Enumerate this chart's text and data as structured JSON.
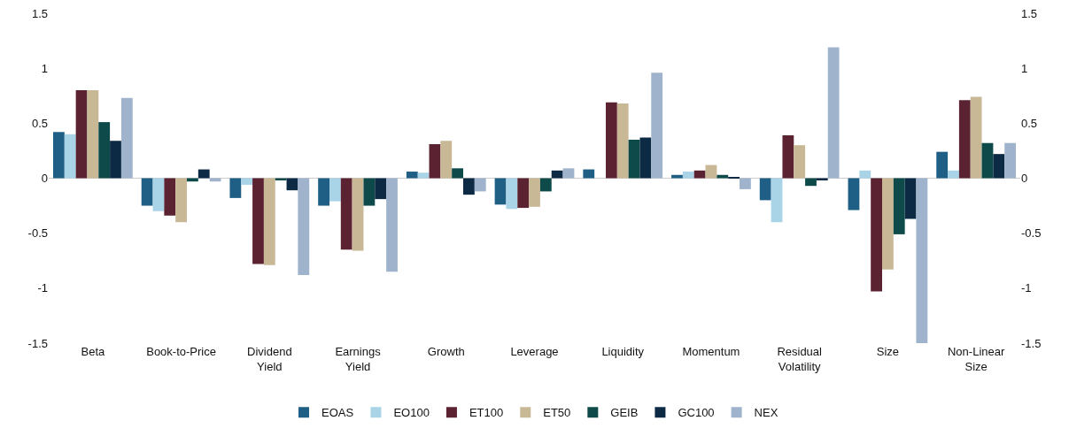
{
  "chart_data": {
    "type": "bar",
    "categories": [
      "Beta",
      "Book-to-Price",
      "Dividend\nYield",
      "Earnings\nYield",
      "Growth",
      "Leverage",
      "Liquidity",
      "Momentum",
      "Residual\nVolatility",
      "Size",
      "Non-Linear\nSize"
    ],
    "series": [
      {
        "name": "EOAS",
        "color": "#1f5f86",
        "values": [
          0.42,
          -0.25,
          -0.18,
          -0.25,
          0.06,
          -0.24,
          0.08,
          0.03,
          -0.2,
          -0.29,
          0.24
        ]
      },
      {
        "name": "EO100",
        "color": "#a9d4e8",
        "values": [
          0.4,
          -0.3,
          -0.06,
          -0.21,
          0.05,
          -0.28,
          0.0,
          0.06,
          -0.4,
          0.07,
          0.07
        ]
      },
      {
        "name": "ET100",
        "color": "#5b2232",
        "values": [
          0.8,
          -0.34,
          -0.78,
          -0.65,
          0.31,
          -0.27,
          0.69,
          0.07,
          0.39,
          -1.03,
          0.71
        ]
      },
      {
        "name": "ET50",
        "color": "#c8b896",
        "values": [
          0.8,
          -0.4,
          -0.79,
          -0.66,
          0.34,
          -0.26,
          0.68,
          0.12,
          0.3,
          -0.83,
          0.74
        ]
      },
      {
        "name": "GEIB",
        "color": "#0f4a4a",
        "values": [
          0.51,
          -0.03,
          -0.02,
          -0.25,
          0.09,
          -0.12,
          0.35,
          0.03,
          -0.07,
          -0.51,
          0.32
        ]
      },
      {
        "name": "GC100",
        "color": "#0d2a44",
        "values": [
          0.34,
          0.08,
          -0.11,
          -0.19,
          -0.15,
          0.07,
          0.37,
          0.01,
          -0.02,
          -0.37,
          0.22
        ]
      },
      {
        "name": "NEX",
        "color": "#9fb4cc",
        "values": [
          0.73,
          -0.03,
          -0.88,
          -0.85,
          -0.12,
          0.09,
          0.96,
          -0.1,
          1.19,
          -1.5,
          0.32
        ]
      }
    ],
    "ylim": [
      -1.5,
      1.5
    ],
    "yticks": [
      -1.5,
      -1,
      -0.5,
      0,
      0.5,
      1,
      1.5
    ],
    "y2lim": [
      -1.5,
      1.5
    ],
    "y2ticks": [
      -1.5,
      -1,
      -0.5,
      0,
      0.5,
      1,
      1.5
    ],
    "legend": "bottom"
  }
}
